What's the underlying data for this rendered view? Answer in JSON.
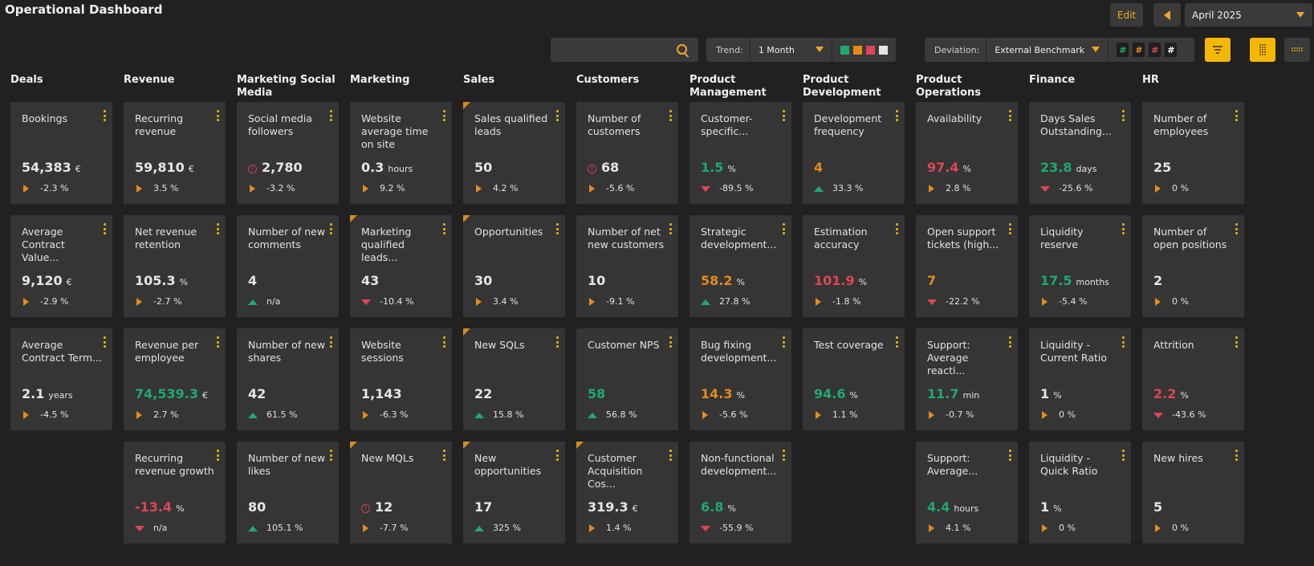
{
  "header": {
    "title": "Operational Dashboard",
    "edit_label": "Edit",
    "month": "April 2025"
  },
  "toolbar": {
    "search_value": "",
    "trend_label": "Trend:",
    "trend_value": "1 Month",
    "deviation_label": "Deviation:",
    "deviation_value": "External Benchmark",
    "swatches": [
      "#1eaa6e",
      "#e68a1c",
      "#e04555",
      "#e6e6e6"
    ],
    "hashes": [
      {
        "text": "#",
        "color": "#1eaa6e"
      },
      {
        "text": "#",
        "color": "#e68a1c"
      },
      {
        "text": "#",
        "color": "#e04555"
      },
      {
        "text": "#",
        "color": "#ffffff"
      }
    ]
  },
  "colors": {
    "green": "#1eaa6e",
    "orange": "#e68a1c",
    "red": "#e04555",
    "white": "#e6e6e6"
  },
  "columns": [
    {
      "name": "Deals",
      "cards": [
        {
          "row": 0,
          "name": "Bookings",
          "value": "54,383",
          "unit": "€",
          "trend": "neutral",
          "change": "-2.3 %",
          "color": "white"
        },
        {
          "row": 1,
          "name": "Average Contract Value...",
          "value": "9,120",
          "unit": "€",
          "trend": "neutral",
          "change": "-2.9 %",
          "color": "white"
        },
        {
          "row": 2,
          "name": "Average Contract Term...",
          "value": "2.1",
          "unit": "years",
          "trend": "neutral",
          "change": "-4.5 %",
          "color": "white"
        }
      ]
    },
    {
      "name": "Revenue",
      "cards": [
        {
          "row": 0,
          "name": "Recurring revenue",
          "value": "59,810",
          "unit": "€",
          "trend": "neutral",
          "change": "3.5 %",
          "color": "white"
        },
        {
          "row": 1,
          "name": "Net revenue retention",
          "value": "105.3",
          "unit": "%",
          "trend": "neutral",
          "change": "-2.7 %",
          "color": "white"
        },
        {
          "row": 2,
          "name": "Revenue per employee",
          "value": "74,539.3",
          "unit": "€",
          "trend": "neutral",
          "change": "2.7 %",
          "color": "green"
        },
        {
          "row": 3,
          "name": "Recurring revenue growth",
          "value": "-13.4",
          "unit": "%",
          "trend": "down",
          "change": "n/a",
          "color": "red"
        }
      ]
    },
    {
      "name": "Marketing Social Media",
      "cards": [
        {
          "row": 0,
          "name": "Social media followers",
          "value": "2,780",
          "unit": "",
          "trend": "neutral",
          "change": "-3.2 %",
          "color": "white",
          "alert": true
        },
        {
          "row": 1,
          "name": "Number of new comments",
          "value": "4",
          "unit": "",
          "trend": "up",
          "change": "n/a",
          "color": "white"
        },
        {
          "row": 2,
          "name": "Number of new shares",
          "value": "42",
          "unit": "",
          "trend": "up",
          "change": "61.5 %",
          "color": "white"
        },
        {
          "row": 3,
          "name": "Number of new likes",
          "value": "80",
          "unit": "",
          "trend": "up",
          "change": "105.1 %",
          "color": "white"
        }
      ]
    },
    {
      "name": "Marketing",
      "cards": [
        {
          "row": 0,
          "name": "Website average time on site",
          "value": "0.3",
          "unit": "hours",
          "trend": "neutral",
          "change": "9.2 %",
          "color": "white"
        },
        {
          "row": 1,
          "name": "Marketing qualified leads...",
          "value": "43",
          "unit": "",
          "trend": "down",
          "change": "-10.4 %",
          "color": "white",
          "corner": true
        },
        {
          "row": 2,
          "name": "Website sessions",
          "value": "1,143",
          "unit": "",
          "trend": "neutral",
          "change": "-6.3 %",
          "color": "white"
        },
        {
          "row": 3,
          "name": "New MQLs",
          "value": "12",
          "unit": "",
          "trend": "neutral",
          "change": "-7.7 %",
          "color": "white",
          "corner": true,
          "alert": true
        }
      ]
    },
    {
      "name": "Sales",
      "cards": [
        {
          "row": 0,
          "name": "Sales qualified leads",
          "value": "50",
          "unit": "",
          "trend": "neutral",
          "change": "4.2 %",
          "color": "white",
          "corner": true
        },
        {
          "row": 1,
          "name": "Opportunities",
          "value": "30",
          "unit": "",
          "trend": "neutral",
          "change": "3.4 %",
          "color": "white",
          "corner": true
        },
        {
          "row": 2,
          "name": "New SQLs",
          "value": "22",
          "unit": "",
          "trend": "up",
          "change": "15.8 %",
          "color": "white",
          "corner": true
        },
        {
          "row": 3,
          "name": "New opportunities",
          "value": "17",
          "unit": "",
          "trend": "up",
          "change": "325 %",
          "color": "white",
          "corner": true
        }
      ]
    },
    {
      "name": "Customers",
      "cards": [
        {
          "row": 0,
          "name": "Number of customers",
          "value": "68",
          "unit": "",
          "trend": "neutral",
          "change": "-5.6 %",
          "color": "white",
          "alert": true
        },
        {
          "row": 1,
          "name": "Number of net new customers",
          "value": "10",
          "unit": "",
          "trend": "neutral",
          "change": "-9.1 %",
          "color": "white"
        },
        {
          "row": 2,
          "name": "Customer NPS",
          "value": "58",
          "unit": "",
          "trend": "up",
          "change": "56.8 %",
          "color": "green"
        },
        {
          "row": 3,
          "name": "Customer Acquisition Cos...",
          "value": "319.3",
          "unit": "€",
          "trend": "neutral",
          "change": "1.4 %",
          "color": "white",
          "corner": true
        }
      ]
    },
    {
      "name": "Product Management",
      "cards": [
        {
          "row": 0,
          "name": "Customer-specific...",
          "value": "1.5",
          "unit": "%",
          "trend": "down",
          "change": "-89.5 %",
          "color": "green"
        },
        {
          "row": 1,
          "name": "Strategic development...",
          "value": "58.2",
          "unit": "%",
          "trend": "up",
          "change": "27.8 %",
          "color": "orange"
        },
        {
          "row": 2,
          "name": "Bug fixing development...",
          "value": "14.3",
          "unit": "%",
          "trend": "neutral",
          "change": "-5.6 %",
          "color": "orange"
        },
        {
          "row": 3,
          "name": "Non-functional development...",
          "value": "6.8",
          "unit": "%",
          "trend": "down",
          "change": "-55.9 %",
          "color": "green"
        }
      ]
    },
    {
      "name": "Product Development",
      "cards": [
        {
          "row": 0,
          "name": "Development frequency",
          "value": "4",
          "unit": "",
          "trend": "up",
          "change": "33.3 %",
          "color": "orange"
        },
        {
          "row": 1,
          "name": "Estimation accuracy",
          "value": "101.9",
          "unit": "%",
          "trend": "neutral",
          "change": "-1.8 %",
          "color": "red"
        },
        {
          "row": 2,
          "name": "Test coverage",
          "value": "94.6",
          "unit": "%",
          "trend": "neutral",
          "change": "1.1 %",
          "color": "green"
        }
      ]
    },
    {
      "name": "Product Operations",
      "cards": [
        {
          "row": 0,
          "name": "Availability",
          "value": "97.4",
          "unit": "%",
          "trend": "neutral",
          "change": "2.8 %",
          "color": "red"
        },
        {
          "row": 1,
          "name": "Open support tickets (high...",
          "value": "7",
          "unit": "",
          "trend": "down",
          "change": "-22.2 %",
          "color": "orange"
        },
        {
          "row": 2,
          "name": "Support: Average reacti...",
          "value": "11.7",
          "unit": "min",
          "trend": "neutral",
          "change": "-0.7 %",
          "color": "green"
        },
        {
          "row": 3,
          "name": "Support: Average...",
          "value": "4.4",
          "unit": "hours",
          "trend": "neutral",
          "change": "4.1 %",
          "color": "green"
        }
      ]
    },
    {
      "name": "Finance",
      "cards": [
        {
          "row": 0,
          "name": "Days Sales Outstanding...",
          "value": "23.8",
          "unit": "days",
          "trend": "down",
          "change": "-25.6 %",
          "color": "green"
        },
        {
          "row": 1,
          "name": "Liquidity reserve",
          "value": "17.5",
          "unit": "months",
          "trend": "neutral",
          "change": "-5.4 %",
          "color": "green"
        },
        {
          "row": 2,
          "name": "Liquidity - Current Ratio",
          "value": "1",
          "unit": "%",
          "trend": "neutral",
          "change": "0 %",
          "color": "white"
        },
        {
          "row": 3,
          "name": "Liquidity - Quick Ratio",
          "value": "1",
          "unit": "%",
          "trend": "neutral",
          "change": "0 %",
          "color": "white"
        }
      ]
    },
    {
      "name": "HR",
      "cards": [
        {
          "row": 0,
          "name": "Number of employees",
          "value": "25",
          "unit": "",
          "trend": "neutral",
          "change": "0 %",
          "color": "white"
        },
        {
          "row": 1,
          "name": "Number of open positions",
          "value": "2",
          "unit": "",
          "trend": "neutral",
          "change": "0 %",
          "color": "white"
        },
        {
          "row": 2,
          "name": "Attrition",
          "value": "2.2",
          "unit": "%",
          "trend": "down",
          "change": "-43.6 %",
          "color": "red"
        },
        {
          "row": 3,
          "name": "New hires",
          "value": "5",
          "unit": "",
          "trend": "neutral",
          "change": "0 %",
          "color": "white"
        }
      ]
    }
  ]
}
